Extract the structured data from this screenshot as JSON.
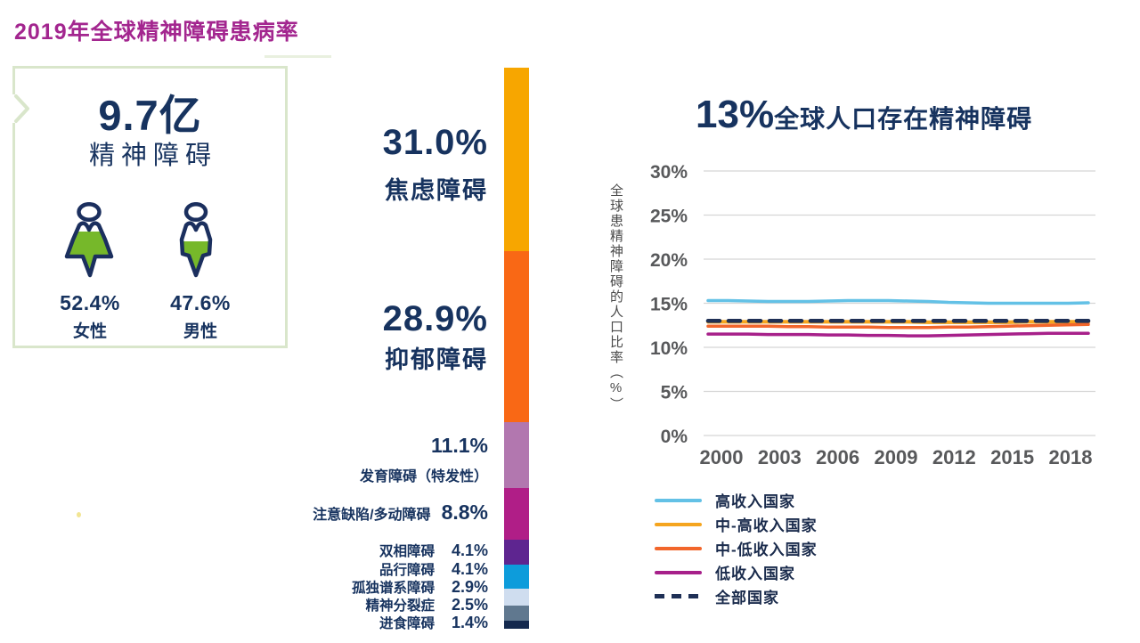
{
  "page": {
    "title": "2019年全球精神障碍患病率",
    "title_color": "#A3268F",
    "background": "#FFFFFF"
  },
  "left_panel": {
    "big_number": "9.7亿",
    "subtitle": "精神障碍",
    "female": {
      "percent": "52.4%",
      "label": "女性",
      "fill_percent": 52.4
    },
    "male": {
      "percent": "47.6%",
      "label": "男性",
      "fill_percent": 47.6
    },
    "icon_outline_color": "#1B2F5E",
    "icon_fill_color": "#76B82A",
    "border_color": "#D9E6CB"
  },
  "chart_data": [
    {
      "type": "bar",
      "variant": "stacked-vertical-single-column",
      "segments": [
        {
          "label": "焦虑障碍",
          "value": 31.0,
          "value_label": "31.0%",
          "color": "#F7A600"
        },
        {
          "label": "抑郁障碍",
          "value": 28.9,
          "value_label": "28.9%",
          "color": "#F96815"
        },
        {
          "label": "发育障碍（特发性）",
          "value": 11.1,
          "value_label": "11.1%",
          "color": "#B277AF"
        },
        {
          "label": "注意缺陷/多动障碍",
          "value": 8.8,
          "value_label": "8.8%",
          "color": "#B01E87"
        },
        {
          "label": "双相障碍",
          "value": 4.1,
          "value_label": "4.1%",
          "color": "#5E2590"
        },
        {
          "label": "品行障碍",
          "value": 4.1,
          "value_label": "4.1%",
          "color": "#0D9CDB"
        },
        {
          "label": "孤独谱系障碍",
          "value": 2.9,
          "value_label": "2.9%",
          "color": "#CFDDEF"
        },
        {
          "label": "精神分裂症",
          "value": 2.5,
          "value_label": "2.5%",
          "color": "#60788F"
        },
        {
          "label": "进食障碍",
          "value": 1.4,
          "value_label": "1.4%",
          "color": "#14294E"
        }
      ]
    },
    {
      "type": "line",
      "title_highlight": "13%",
      "title_rest": "全球人口存在精神障碍",
      "ylabel": "全球患精神障碍的人口比率（%）",
      "ylim": [
        0,
        30
      ],
      "grid": true,
      "legend_position": "bottom-left",
      "yticks": [
        "30%",
        "25%",
        "20%",
        "15%",
        "10%",
        "5%",
        "0%"
      ],
      "ytick_values": [
        30,
        25,
        20,
        15,
        10,
        5,
        0
      ],
      "xticks": [
        "2000",
        "2003",
        "2006",
        "2009",
        "2012",
        "2015",
        "2018"
      ],
      "xtick_values": [
        2000,
        2003,
        2006,
        2009,
        2012,
        2015,
        2018
      ],
      "x": [
        2000,
        2001,
        2002,
        2003,
        2004,
        2005,
        2006,
        2007,
        2008,
        2009,
        2010,
        2011,
        2012,
        2013,
        2014,
        2015,
        2016,
        2017,
        2018,
        2019
      ],
      "series": [
        {
          "name": "高收入国家",
          "color": "#63C1E6",
          "dash": false,
          "values": [
            15.3,
            15.3,
            15.25,
            15.2,
            15.2,
            15.2,
            15.25,
            15.3,
            15.3,
            15.3,
            15.25,
            15.2,
            15.1,
            15.05,
            15.0,
            15.0,
            15.0,
            15.0,
            15.0,
            15.05
          ]
        },
        {
          "name": "中-高收入国家",
          "color": "#F5A51F",
          "dash": false,
          "values": [
            12.9,
            12.9,
            12.9,
            12.9,
            12.9,
            12.9,
            12.9,
            12.9,
            12.9,
            12.9,
            12.9,
            12.85,
            12.85,
            12.85,
            12.85,
            12.85,
            12.9,
            12.9,
            12.9,
            12.9
          ]
        },
        {
          "name": "中-低收入国家",
          "color": "#F2662B",
          "dash": false,
          "values": [
            12.4,
            12.4,
            12.4,
            12.4,
            12.35,
            12.35,
            12.3,
            12.3,
            12.3,
            12.25,
            12.25,
            12.25,
            12.3,
            12.3,
            12.35,
            12.4,
            12.45,
            12.5,
            12.55,
            12.6
          ]
        },
        {
          "name": "低收入国家",
          "color": "#A7208A",
          "dash": false,
          "values": [
            11.5,
            11.5,
            11.5,
            11.45,
            11.45,
            11.45,
            11.4,
            11.4,
            11.35,
            11.35,
            11.3,
            11.3,
            11.35,
            11.4,
            11.45,
            11.5,
            11.55,
            11.6,
            11.6,
            11.6
          ]
        },
        {
          "name": "全部国家",
          "color": "#1F3056",
          "dash": true,
          "values": [
            13.0,
            13.0,
            13.0,
            13.0,
            13.0,
            13.0,
            13.0,
            13.0,
            13.0,
            13.0,
            13.0,
            13.0,
            13.0,
            13.0,
            13.0,
            13.0,
            13.0,
            13.0,
            13.0,
            13.0
          ]
        }
      ],
      "axis_text_color": "#58595B",
      "grid_color": "#D5D5D5"
    }
  ]
}
